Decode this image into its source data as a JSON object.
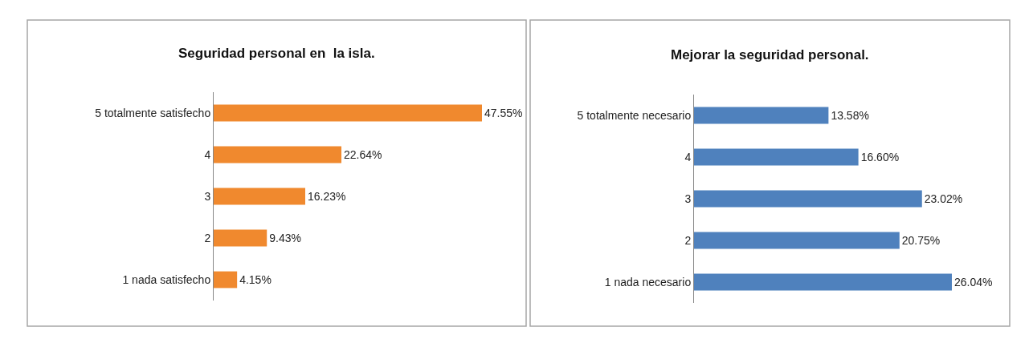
{
  "chart_data": [
    {
      "type": "bar",
      "orientation": "horizontal",
      "title": "Seguridad personal en  la isla.",
      "categories": [
        "5 totalmente satisfecho",
        "4",
        "3",
        "2",
        "1 nada satisfecho"
      ],
      "values": [
        47.55,
        22.64,
        16.23,
        9.43,
        4.15
      ],
      "color": "#f0892e",
      "value_labels": [
        "47.55%",
        "22.64%",
        "16.23%",
        "9.43%",
        "4.15%"
      ],
      "tick_labels": "y"
    },
    {
      "type": "bar",
      "orientation": "horizontal",
      "title": "Mejorar la seguridad personal.",
      "categories": [
        "5 totalmente necesario",
        "4",
        "3",
        "2",
        "1 nada necesario"
      ],
      "values": [
        13.58,
        16.6,
        23.02,
        20.75,
        26.04
      ],
      "color": "#4f81bd",
      "value_labels": [
        "13.58%",
        "16.60%",
        "23.02%",
        "20.75%",
        "26.04%"
      ],
      "tick_labels": "y"
    }
  ]
}
